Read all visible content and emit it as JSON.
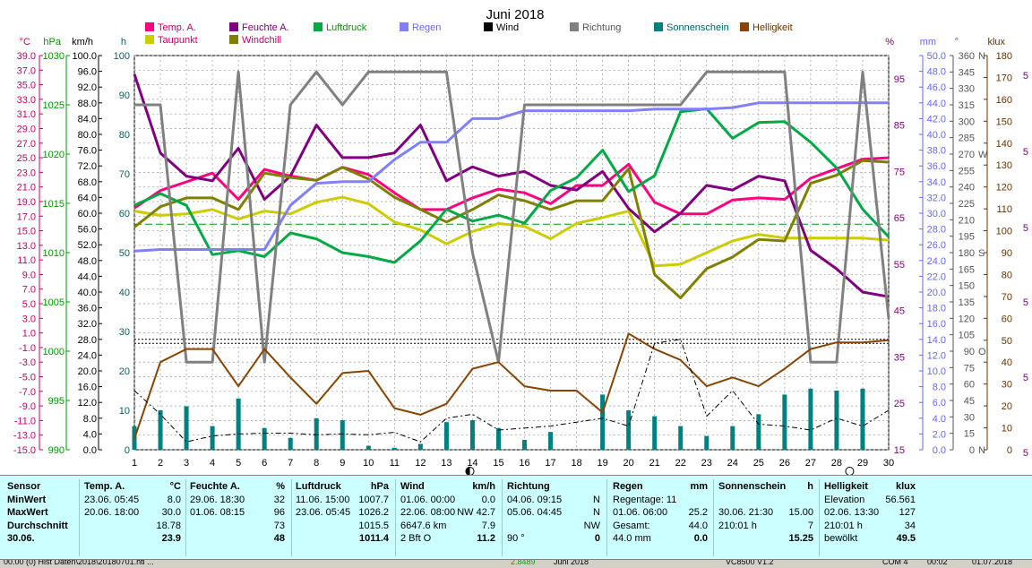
{
  "chart_data": {
    "type": "line",
    "title": "Juni 2018",
    "x": [
      1,
      2,
      3,
      4,
      5,
      6,
      7,
      8,
      9,
      10,
      11,
      12,
      13,
      14,
      15,
      16,
      17,
      18,
      19,
      20,
      21,
      22,
      23,
      24,
      25,
      26,
      27,
      28,
      29,
      30
    ],
    "axes": {
      "temp": {
        "label": "°C",
        "min": -15,
        "max": 39,
        "step": 2,
        "color": "#cc0066"
      },
      "press": {
        "label": "hPa",
        "min": 990,
        "max": 1030,
        "step": 5,
        "color": "#009900"
      },
      "wind": {
        "label": "km/h",
        "min": 0,
        "max": 100,
        "step": 4,
        "color": "#000000"
      },
      "sun": {
        "label": "h",
        "min": 0,
        "max": 100,
        "step": 10,
        "color": "#006666"
      },
      "hum": {
        "label": "%",
        "min": 15,
        "max": 100,
        "color": "#800080",
        "ticks": [
          15,
          25,
          35,
          45,
          55,
          65,
          75,
          85,
          95
        ]
      },
      "rain": {
        "label": "mm",
        "min": 0,
        "max": 50,
        "step": 2,
        "color": "#6666ff"
      },
      "dir": {
        "label": "°",
        "min": 0,
        "max": 360,
        "step": 15,
        "color": "#555555",
        "compass": [
          {
            "deg": 0,
            "t": "N"
          },
          {
            "deg": 90,
            "t": "O"
          },
          {
            "deg": 180,
            "t": "S"
          },
          {
            "deg": 270,
            "t": "W"
          },
          {
            "deg": 360,
            "t": "N"
          }
        ]
      },
      "lux": {
        "label": "klux",
        "min": 0,
        "max": 180,
        "step": 10,
        "color": "#663300"
      }
    },
    "series": [
      {
        "name": "Temp. A.",
        "axis": "temp",
        "color": "#ff0080",
        "width": 3,
        "values": [
          18.1,
          20.5,
          21.7,
          22.9,
          19.3,
          23.4,
          22.5,
          21.9,
          23.7,
          22.7,
          20.2,
          17.9,
          17.9,
          19.5,
          20.7,
          20.2,
          18.7,
          21.2,
          21.2,
          24.1,
          18.9,
          17.3,
          17.3,
          19.2,
          19.5,
          19.3,
          22.2,
          23.5,
          24.8,
          25.0
        ]
      },
      {
        "name": "Taupunkt",
        "axis": "temp",
        "color": "#cccc00",
        "width": 3,
        "values": [
          17.7,
          17.1,
          17.3,
          17.9,
          16.6,
          17.7,
          17.3,
          18.9,
          19.6,
          18.7,
          16.2,
          15.1,
          13.2,
          14.9,
          16.0,
          15.6,
          13.9,
          16.0,
          16.8,
          17.7,
          10.2,
          10.4,
          12.0,
          13.6,
          14.5,
          14.0,
          14.0,
          14.0,
          14.0,
          13.7
        ]
      },
      {
        "name": "Feuchte A.",
        "axis": "hum",
        "color": "#800080",
        "width": 3,
        "values": [
          96,
          79,
          74,
          73,
          80,
          69,
          74,
          85,
          78,
          78,
          79,
          85,
          73,
          76,
          74,
          75,
          72,
          71,
          75,
          67,
          62,
          66,
          72,
          71,
          74,
          73,
          58,
          54,
          49,
          48
        ]
      },
      {
        "name": "Windchill",
        "axis": "temp",
        "color": "#808000",
        "width": 3,
        "values": [
          15.5,
          18.3,
          19.5,
          19.5,
          17.9,
          22.9,
          22.3,
          21.9,
          23.7,
          22.1,
          19.6,
          17.9,
          16.2,
          17.9,
          19.9,
          19.1,
          17.9,
          19.1,
          19.1,
          23.5,
          9.0,
          5.8,
          9.8,
          11.4,
          13.8,
          13.6,
          21.5,
          22.6,
          24.6,
          24.4
        ]
      },
      {
        "name": "Luftdruck",
        "axis": "press",
        "color": "#00aa44",
        "width": 3,
        "values": [
          1014.8,
          1016.0,
          1014.8,
          1009.8,
          1010.2,
          1009.6,
          1012.0,
          1011.4,
          1010.0,
          1009.6,
          1009.0,
          1011.2,
          1014.4,
          1013.2,
          1013.8,
          1013.0,
          1016.3,
          1017.6,
          1020.4,
          1016.2,
          1017.8,
          1024.3,
          1024.6,
          1021.6,
          1023.2,
          1023.3,
          1021.2,
          1018.6,
          1014.4,
          1011.6
        ]
      },
      {
        "name": "Regen",
        "axis": "rain",
        "color": "#8080ff",
        "width": 3,
        "values": [
          25.2,
          25.4,
          25.4,
          25.4,
          25.4,
          25.4,
          31.0,
          33.8,
          34.0,
          34.0,
          36.8,
          39.0,
          39.0,
          42.0,
          42.0,
          43.0,
          43.0,
          43.0,
          43.0,
          43.0,
          43.2,
          43.2,
          43.2,
          43.4,
          44.0,
          44.0,
          44.0,
          44.0,
          44.0,
          44.0
        ]
      },
      {
        "name": "Richtung",
        "axis": "dir",
        "color": "#808080",
        "width": 3,
        "values": [
          315,
          315,
          80,
          80,
          345,
          80,
          315,
          345,
          315,
          345,
          345,
          345,
          345,
          180,
          80,
          315,
          315,
          315,
          315,
          315,
          315,
          315,
          345,
          345,
          345,
          345,
          80,
          80,
          345,
          120
        ]
      },
      {
        "name": "Helligkeit",
        "axis": "lux",
        "color": "#884400",
        "width": 2,
        "values": [
          5,
          40,
          46,
          46,
          29,
          46,
          33,
          21,
          35,
          36,
          19,
          16,
          21,
          37,
          40,
          29,
          27,
          27,
          17,
          53,
          46,
          41,
          29,
          33,
          29,
          37,
          46,
          49,
          49,
          50
        ]
      },
      {
        "name": "Wind",
        "axis": "wind",
        "color": "#000000",
        "width": 1,
        "dash": "6,3,2,3",
        "values": [
          15.0,
          9.0,
          2.0,
          3.5,
          4.0,
          4.2,
          4.2,
          3.8,
          4.0,
          3.8,
          4.4,
          2.0,
          8.0,
          9.0,
          5.0,
          5.5,
          6.0,
          7.0,
          8.0,
          6.0,
          27.0,
          28.0,
          8.5,
          15.0,
          6.5,
          6.0,
          5.0,
          8.0,
          6.0,
          10.0
        ]
      }
    ],
    "sunshine_bars": {
      "name": "Sonnenschein",
      "axis": "sun",
      "color": "#008080",
      "values": [
        6,
        10,
        11,
        6,
        13,
        5.5,
        3,
        8,
        7.5,
        1,
        0.5,
        1.5,
        7,
        7.5,
        5.5,
        2.5,
        4.5,
        0,
        14,
        10,
        8.5,
        6,
        3.5,
        6,
        9,
        14,
        15.5,
        15,
        15.5,
        0
      ]
    },
    "ref_lines": [
      {
        "axis": "temp",
        "value": 15.9,
        "color": "#009900",
        "dash": "8,4"
      },
      {
        "axis": "rain",
        "value": 14.0,
        "color": "#000000",
        "dash": "2,2"
      },
      {
        "axis": "rain",
        "value": 13.5,
        "color": "#000000",
        "dash": "2,2"
      }
    ],
    "moon_markers": [
      {
        "day": 13.9,
        "type": "new"
      },
      {
        "day": 28.5,
        "type": "full"
      }
    ],
    "legend": [
      {
        "name": "Temp. A.",
        "color": "#ff0080",
        "text_color": "#cc0066"
      },
      {
        "name": "Taupunkt",
        "color": "#cccc00",
        "text_color": "#cc0066"
      },
      {
        "name": "Feuchte A.",
        "color": "#800080",
        "text_color": "#800080"
      },
      {
        "name": "Windchill",
        "color": "#808000",
        "text_color": "#cc0066"
      },
      {
        "name": "Luftdruck",
        "color": "#00aa44",
        "text_color": "#009900"
      },
      {
        "name": "Regen",
        "color": "#8080ff",
        "text_color": "#6666ff"
      },
      {
        "name": "Wind",
        "color": "#000000",
        "text_color": "#000000"
      },
      {
        "name": "Richtung",
        "color": "#808080",
        "text_color": "#555555"
      },
      {
        "name": "Sonnenschein",
        "color": "#008080",
        "text_color": "#006666"
      },
      {
        "name": "Helligkeit",
        "color": "#884400",
        "text_color": "#663300"
      }
    ],
    "right_edge_marks": "5"
  },
  "stats": {
    "sensor": {
      "head": "Sensor",
      "rows": [
        "MinWert",
        "MaxWert",
        "Durchschnitt"
      ],
      "date": "30.06."
    },
    "temp": {
      "head": "Temp. A.",
      "unit": "°C",
      "rows": [
        [
          "23.06.  05:45",
          "8.0"
        ],
        [
          "20.06.  18:00",
          "30.0"
        ],
        [
          "",
          "18.78"
        ]
      ],
      "current": "23.9"
    },
    "hum": {
      "head": "Feuchte A.",
      "unit": "%",
      "rows": [
        [
          "29.06.  18:30",
          "32"
        ],
        [
          "01.06.  08:15",
          "96"
        ],
        [
          "",
          "73"
        ]
      ],
      "current": "48"
    },
    "press": {
      "head": "Luftdruck",
      "unit": "hPa",
      "rows": [
        [
          "11.06.  15:00",
          "1007.7"
        ],
        [
          "23.06.  05:45",
          "1026.2"
        ],
        [
          "",
          "1015.5"
        ]
      ],
      "current": "1011.4"
    },
    "wind": {
      "head": "Wind",
      "unit": "km/h",
      "rows": [
        [
          "01.06.  00:00",
          "0.0"
        ],
        [
          "22.06.  08:00",
          "NW 42.7"
        ],
        [
          "6647.6 km",
          "7.9"
        ]
      ],
      "current_l": "2 Bft O",
      "current": "11.2"
    },
    "dir": {
      "head": "Richtung",
      "rows": [
        [
          "04.06.  09:15",
          "N"
        ],
        [
          "05.06.  04:45",
          "N"
        ],
        [
          "",
          "NW"
        ]
      ],
      "current_l": "90 °",
      "current": "0"
    },
    "rain": {
      "head": "Regen",
      "unit": "mm",
      "rows": [
        [
          "Regentage: 11",
          ""
        ],
        [
          "01.06.  06:00",
          "25.2"
        ],
        [
          "Gesamt:",
          "44.0"
        ]
      ],
      "current_l": "44.0 mm",
      "current": "0.0"
    },
    "sun": {
      "head": "Sonnenschein",
      "unit": "h",
      "rows": [
        [
          "",
          ""
        ],
        [
          "30.06.  21:30",
          "15.00"
        ],
        [
          "210:01 h",
          "7"
        ]
      ],
      "current": "15.25"
    },
    "lux": {
      "head": "Helligkeit",
      "unit": "klux",
      "rows": [
        [
          "Elevation",
          "56.561"
        ],
        [
          "02.06.  13:30",
          "127"
        ],
        [
          "210:01 h",
          "34"
        ]
      ],
      "current_l": "bewölkt",
      "current": "49.5"
    }
  },
  "statusbar": [
    "00.00 (0)  Hist Daten\\2018\\20180701.htl  ...",
    "2.8489",
    "Juni 2018",
    "VC8500 V1.2",
    "COM 4",
    "00:02",
    "01.07.2018"
  ]
}
